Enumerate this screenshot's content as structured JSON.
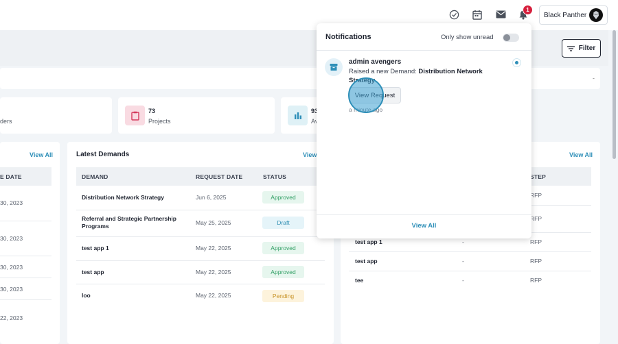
{
  "topbar": {
    "icons": [
      "check-circle-icon",
      "calendar-icon",
      "mail-icon",
      "bell-icon"
    ],
    "notification_count": "1",
    "user_name": "Black Panther"
  },
  "header": {
    "filter_label": "Filter",
    "search_value": "-"
  },
  "stats": [
    {
      "value": "",
      "label": "ders",
      "icon": "orders-icon"
    },
    {
      "value": "73",
      "label": "Projects",
      "icon": "clipboard-icon",
      "color": "#f9dbe2"
    },
    {
      "value": "93",
      "label": "Av",
      "icon": "bar-chart-icon",
      "color": "#dff1f6"
    }
  ],
  "left_panel": {
    "view_all": "View All",
    "header": "E DATE",
    "dates": [
      "30, 2023",
      "30, 2023",
      "30, 2023",
      "30, 2023",
      "22, 2023"
    ]
  },
  "latest_demands": {
    "title": "Latest Demands",
    "view_all": "View",
    "columns": [
      "DEMAND",
      "REQUEST DATE",
      "STATUS"
    ],
    "rows": [
      {
        "demand": "Distribution Network Strategy",
        "date": "Jun 6, 2025",
        "status": "Approved"
      },
      {
        "demand": "Referral and Strategic Partnership Programs",
        "date": "May 25, 2025",
        "status": "Draft"
      },
      {
        "demand": "test app 1",
        "date": "May 22, 2025",
        "status": "Approved"
      },
      {
        "demand": "test app",
        "date": "May 22, 2025",
        "status": "Approved"
      },
      {
        "demand": "loo",
        "date": "May 22, 2025",
        "status": "Pending"
      }
    ]
  },
  "right_panel": {
    "view_all": "View All",
    "step_header": "STEP",
    "rows": [
      {
        "name": "",
        "mid": "",
        "step": "RFP"
      },
      {
        "name": "",
        "mid": "",
        "step": "RFP"
      },
      {
        "name": "test app 1",
        "mid": "-",
        "step": "RFP"
      },
      {
        "name": "test app",
        "mid": "-",
        "step": "RFP"
      },
      {
        "name": "tee",
        "mid": "-",
        "step": "RFP"
      }
    ]
  },
  "notifications": {
    "title": "Notifications",
    "only_unread_label": "Only show unread",
    "only_unread": false,
    "item": {
      "sender": "admin avengers",
      "prefix": "Raised a new Demand:",
      "demand": "Distribution Network Strategy",
      "action": "View Request",
      "time": "a minute ago"
    },
    "view_all": "View All"
  }
}
